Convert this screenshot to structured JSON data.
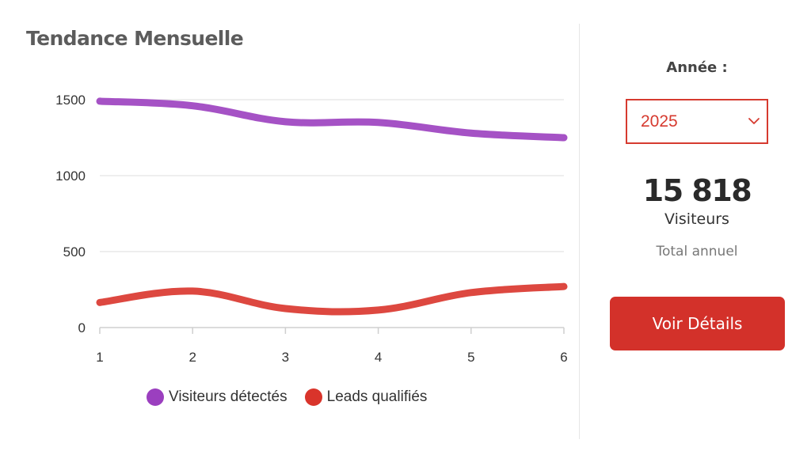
{
  "card": {
    "title": "Tendance Mensuelle"
  },
  "chart_data": {
    "type": "line",
    "title": "Tendance Mensuelle",
    "x": [
      1,
      2,
      3,
      4,
      5,
      6
    ],
    "xlim": [
      1,
      6
    ],
    "ylim": [
      0,
      1500
    ],
    "yticks": [
      0,
      500,
      1000,
      1500
    ],
    "grid": true,
    "smooth": true,
    "legend": "bottom",
    "series": [
      {
        "name": "Visiteurs détectés",
        "color": "#9b3fbf",
        "values": [
          1490,
          1460,
          1355,
          1350,
          1280,
          1250
        ]
      },
      {
        "name": "Leads qualifiés",
        "color": "#d9342b",
        "values": [
          165,
          240,
          125,
          115,
          230,
          270
        ]
      }
    ]
  },
  "side": {
    "year_label": "Année :",
    "year_value": "2025",
    "total_value": "15 818",
    "total_label": "Visiteurs",
    "total_sub": "Total annuel",
    "button_label": "Voir Détails",
    "accent_color": "#d63a2f"
  }
}
